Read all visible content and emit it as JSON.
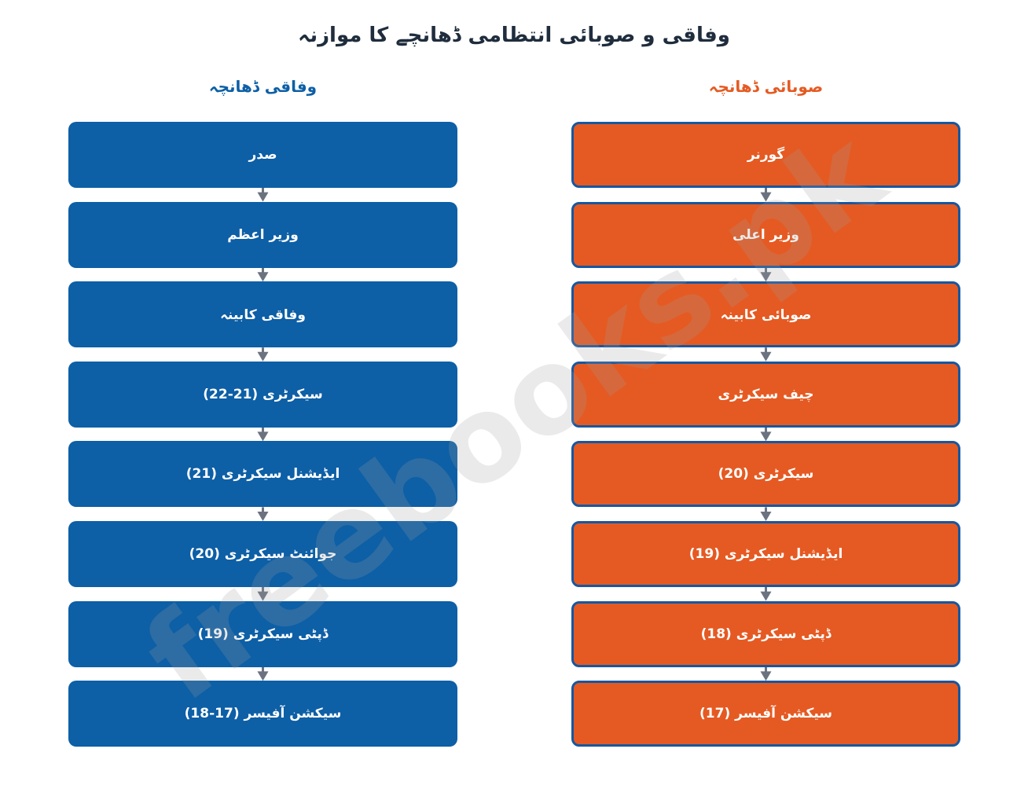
{
  "title": "وفاقی و صوبائی انتظامی ڈھانچے کا موازنہ",
  "columns": [
    {
      "heading": "وفاقی ڈھانچہ",
      "nodes": [
        "صدر",
        "وزیر اعظم",
        "وفاقی کابینہ",
        "سیکرٹری (21-22)",
        "ایڈیشنل سیکرٹری (21)",
        "جوائنٹ سیکرٹری (20)",
        "ڈپٹی سیکرٹری (19)",
        "سیکشن آفیسر (17-18)"
      ]
    },
    {
      "heading": "صوبائی ڈھانچہ",
      "nodes": [
        "گورنر",
        "وزیر اعلی",
        "صوبائی کابینہ",
        "چیف سیکرٹری",
        "سیکرٹری (20)",
        "ایڈیشنل سیکرٹری (19)",
        "ڈپٹی سیکرٹری (18)",
        "سیکشن آفیسر (17)"
      ]
    }
  ],
  "watermark": "freebooks.pk"
}
